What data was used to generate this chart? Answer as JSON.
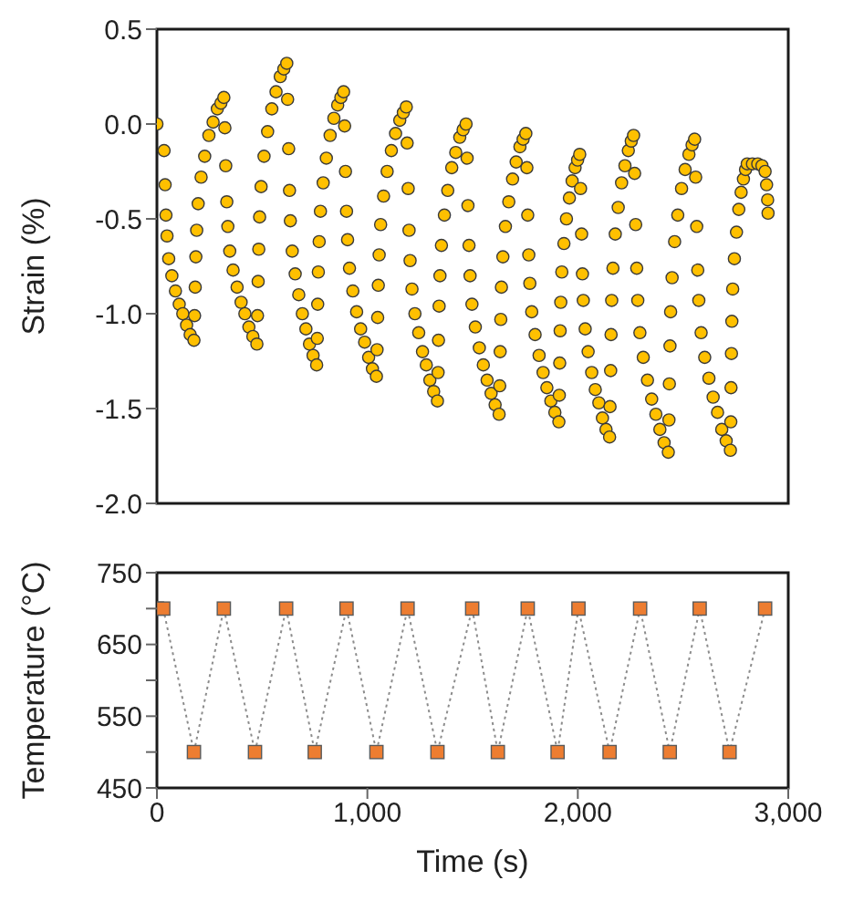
{
  "chart_data": [
    {
      "type": "scatter",
      "ylabel": "Strain (%)",
      "xlim": [
        0,
        3000
      ],
      "ylim": [
        -2,
        0.5
      ],
      "yticks": [
        0.5,
        {
          "value": 0,
          "label": "0.0"
        },
        -0.5,
        {
          "value": -1,
          "label": "-1.0"
        },
        -1.5,
        {
          "value": -2,
          "label": "-2.0"
        }
      ],
      "tick_labels": "y",
      "marker": "circle",
      "series": [
        {
          "color": "#ffc000",
          "x": [
            0,
            34,
            39,
            43,
            48,
            56,
            71,
            88,
            106,
            123,
            141,
            158,
            176,
            179,
            182,
            185,
            189,
            196,
            210,
            227,
            247,
            267,
            287,
            304,
            318,
            323,
            327,
            332,
            337,
            346,
            362,
            381,
            400,
            418,
            437,
            456,
            475,
            478,
            481,
            484,
            488,
            495,
            509,
            526,
            546,
            566,
            586,
            603,
            617,
            621,
            626,
            630,
            634,
            643,
            657,
            674,
            691,
            708,
            725,
            742,
            759,
            762,
            764,
            767,
            771,
            777,
            790,
            805,
            823,
            841,
            859,
            874,
            887,
            892,
            896,
            901,
            906,
            915,
            931,
            949,
            968,
            987,
            1006,
            1024,
            1043,
            1046,
            1049,
            1052,
            1056,
            1063,
            1077,
            1094,
            1114,
            1134,
            1154,
            1171,
            1185,
            1189,
            1194,
            1198,
            1203,
            1212,
            1226,
            1244,
            1262,
            1280,
            1297,
            1315,
            1333,
            1336,
            1338,
            1341,
            1345,
            1352,
            1366,
            1382,
            1401,
            1420,
            1439,
            1455,
            1469,
            1474,
            1478,
            1483,
            1488,
            1497,
            1513,
            1532,
            1551,
            1569,
            1588,
            1607,
            1626,
            1629,
            1631,
            1634,
            1637,
            1644,
            1656,
            1672,
            1690,
            1707,
            1725,
            1740,
            1753,
            1758,
            1762,
            1767,
            1772,
            1781,
            1797,
            1816,
            1835,
            1853,
            1872,
            1891,
            1910,
            1912,
            1914,
            1916,
            1919,
            1924,
            1934,
            1946,
            1960,
            1973,
            1987,
            1999,
            2009,
            2013,
            2018,
            2022,
            2026,
            2035,
            2049,
            2066,
            2083,
            2100,
            2117,
            2134,
            2151,
            2153,
            2156,
            2158,
            2161,
            2167,
            2178,
            2192,
            2208,
            2224,
            2240,
            2254,
            2265,
            2270,
            2275,
            2280,
            2285,
            2295,
            2311,
            2331,
            2351,
            2371,
            2390,
            2410,
            2430,
            2433,
            2435,
            2438,
            2441,
            2448,
            2460,
            2475,
            2493,
            2510,
            2528,
            2543,
            2555,
            2560,
            2565,
            2570,
            2575,
            2586,
            2603,
            2623,
            2643,
            2664,
            2684,
            2705,
            2725,
            2727,
            2728,
            2730,
            2732,
            2736,
            2744,
            2754,
            2765,
            2776,
            2787,
            2797,
            2805,
            2830,
            2855,
            2875,
            2890,
            2897,
            2902,
            2904
          ],
          "values": [
            0,
            -0.14,
            -0.32,
            -0.48,
            -0.59,
            -0.71,
            -0.8,
            -0.88,
            -0.95,
            -1,
            -1.06,
            -1.11,
            -1.14,
            -1.01,
            -0.86,
            -0.7,
            -0.56,
            -0.42,
            -0.28,
            -0.17,
            -0.06,
            0.01,
            0.08,
            0.11,
            0.14,
            -0.02,
            -0.22,
            -0.41,
            -0.54,
            -0.67,
            -0.77,
            -0.86,
            -0.94,
            -1,
            -1.07,
            -1.12,
            -1.16,
            -1.01,
            -0.83,
            -0.66,
            -0.49,
            -0.33,
            -0.17,
            -0.04,
            0.08,
            0.17,
            0.25,
            0.29,
            0.32,
            0.13,
            -0.13,
            -0.35,
            -0.51,
            -0.67,
            -0.79,
            -0.9,
            -1,
            -1.08,
            -1.16,
            -1.22,
            -1.27,
            -1.13,
            -0.95,
            -0.78,
            -0.62,
            -0.46,
            -0.31,
            -0.18,
            -0.06,
            0.03,
            0.1,
            0.14,
            0.17,
            -0.01,
            -0.25,
            -0.46,
            -0.61,
            -0.76,
            -0.88,
            -0.99,
            -1.08,
            -1.15,
            -1.23,
            -1.29,
            -1.33,
            -1.19,
            -1.02,
            -0.85,
            -0.69,
            -0.53,
            -0.38,
            -0.25,
            -0.14,
            -0.05,
            0.02,
            0.06,
            0.09,
            -0.1,
            -0.34,
            -0.56,
            -0.72,
            -0.87,
            -1,
            -1.1,
            -1.2,
            -1.27,
            -1.35,
            -1.41,
            -1.46,
            -1.31,
            -1.14,
            -0.96,
            -0.8,
            -0.64,
            -0.48,
            -0.35,
            -0.23,
            -0.15,
            -0.07,
            -0.03,
            0,
            -0.18,
            -0.43,
            -0.64,
            -0.8,
            -0.95,
            -1.07,
            -1.18,
            -1.27,
            -1.35,
            -1.42,
            -1.48,
            -1.53,
            -1.38,
            -1.2,
            -1.03,
            -0.86,
            -0.7,
            -0.54,
            -0.41,
            -0.29,
            -0.2,
            -0.12,
            -0.08,
            -0.05,
            -0.23,
            -0.48,
            -0.69,
            -0.84,
            -0.99,
            -1.11,
            -1.22,
            -1.31,
            -1.39,
            -1.46,
            -1.52,
            -1.57,
            -1.43,
            -1.26,
            -1.09,
            -0.94,
            -0.78,
            -0.63,
            -0.5,
            -0.39,
            -0.3,
            -0.23,
            -0.19,
            -0.16,
            -0.34,
            -0.58,
            -0.79,
            -0.93,
            -1.08,
            -1.2,
            -1.31,
            -1.4,
            -1.47,
            -1.55,
            -1.61,
            -1.65,
            -1.49,
            -1.3,
            -1.11,
            -0.93,
            -0.76,
            -0.58,
            -0.44,
            -0.31,
            -0.22,
            -0.14,
            -0.09,
            -0.06,
            -0.26,
            -0.53,
            -0.76,
            -0.93,
            -1.1,
            -1.23,
            -1.35,
            -1.45,
            -1.53,
            -1.61,
            -1.68,
            -1.73,
            -1.56,
            -1.37,
            -1.17,
            -0.99,
            -0.81,
            -0.62,
            -0.48,
            -0.34,
            -0.24,
            -0.16,
            -0.11,
            -0.08,
            -0.28,
            -0.54,
            -0.77,
            -0.93,
            -1.1,
            -1.23,
            -1.34,
            -1.44,
            -1.52,
            -1.61,
            -1.67,
            -1.72,
            -1.57,
            -1.39,
            -1.21,
            -1.04,
            -0.87,
            -0.71,
            -0.57,
            -0.45,
            -0.36,
            -0.29,
            -0.24,
            -0.21,
            -0.21,
            -0.21,
            -0.22,
            -0.25,
            -0.32,
            -0.4,
            -0.47
          ]
        }
      ]
    },
    {
      "type": "line",
      "xlabel": "Time (s)",
      "ylabel": "Temperature (°C)",
      "xlim": [
        0,
        3000
      ],
      "xticks": [
        0,
        {
          "value": 1000,
          "label": "1,000"
        },
        {
          "value": 2000,
          "label": "2,000"
        },
        {
          "value": 3000,
          "label": "3,000"
        }
      ],
      "ylim": [
        450,
        750
      ],
      "yticks": [
        450,
        {
          "value": 500,
          "label": null
        },
        550,
        {
          "value": 600,
          "label": null
        },
        650,
        {
          "value": 700,
          "label": null
        },
        750
      ],
      "marker": "square",
      "line_style": "dotted",
      "series": [
        {
          "color": "#ed7d31",
          "x": [
            0,
            30,
            176,
            318,
            466,
            614,
            750,
            901,
            1043,
            1191,
            1333,
            1498,
            1620,
            1762,
            1904,
            2003,
            2151,
            2296,
            2437,
            2579,
            2721,
            2890
          ],
          "values": [
            700,
            700,
            500,
            700,
            500,
            700,
            500,
            700,
            500,
            700,
            500,
            700,
            500,
            700,
            500,
            700,
            500,
            700,
            500,
            700,
            500,
            700
          ]
        }
      ]
    }
  ]
}
